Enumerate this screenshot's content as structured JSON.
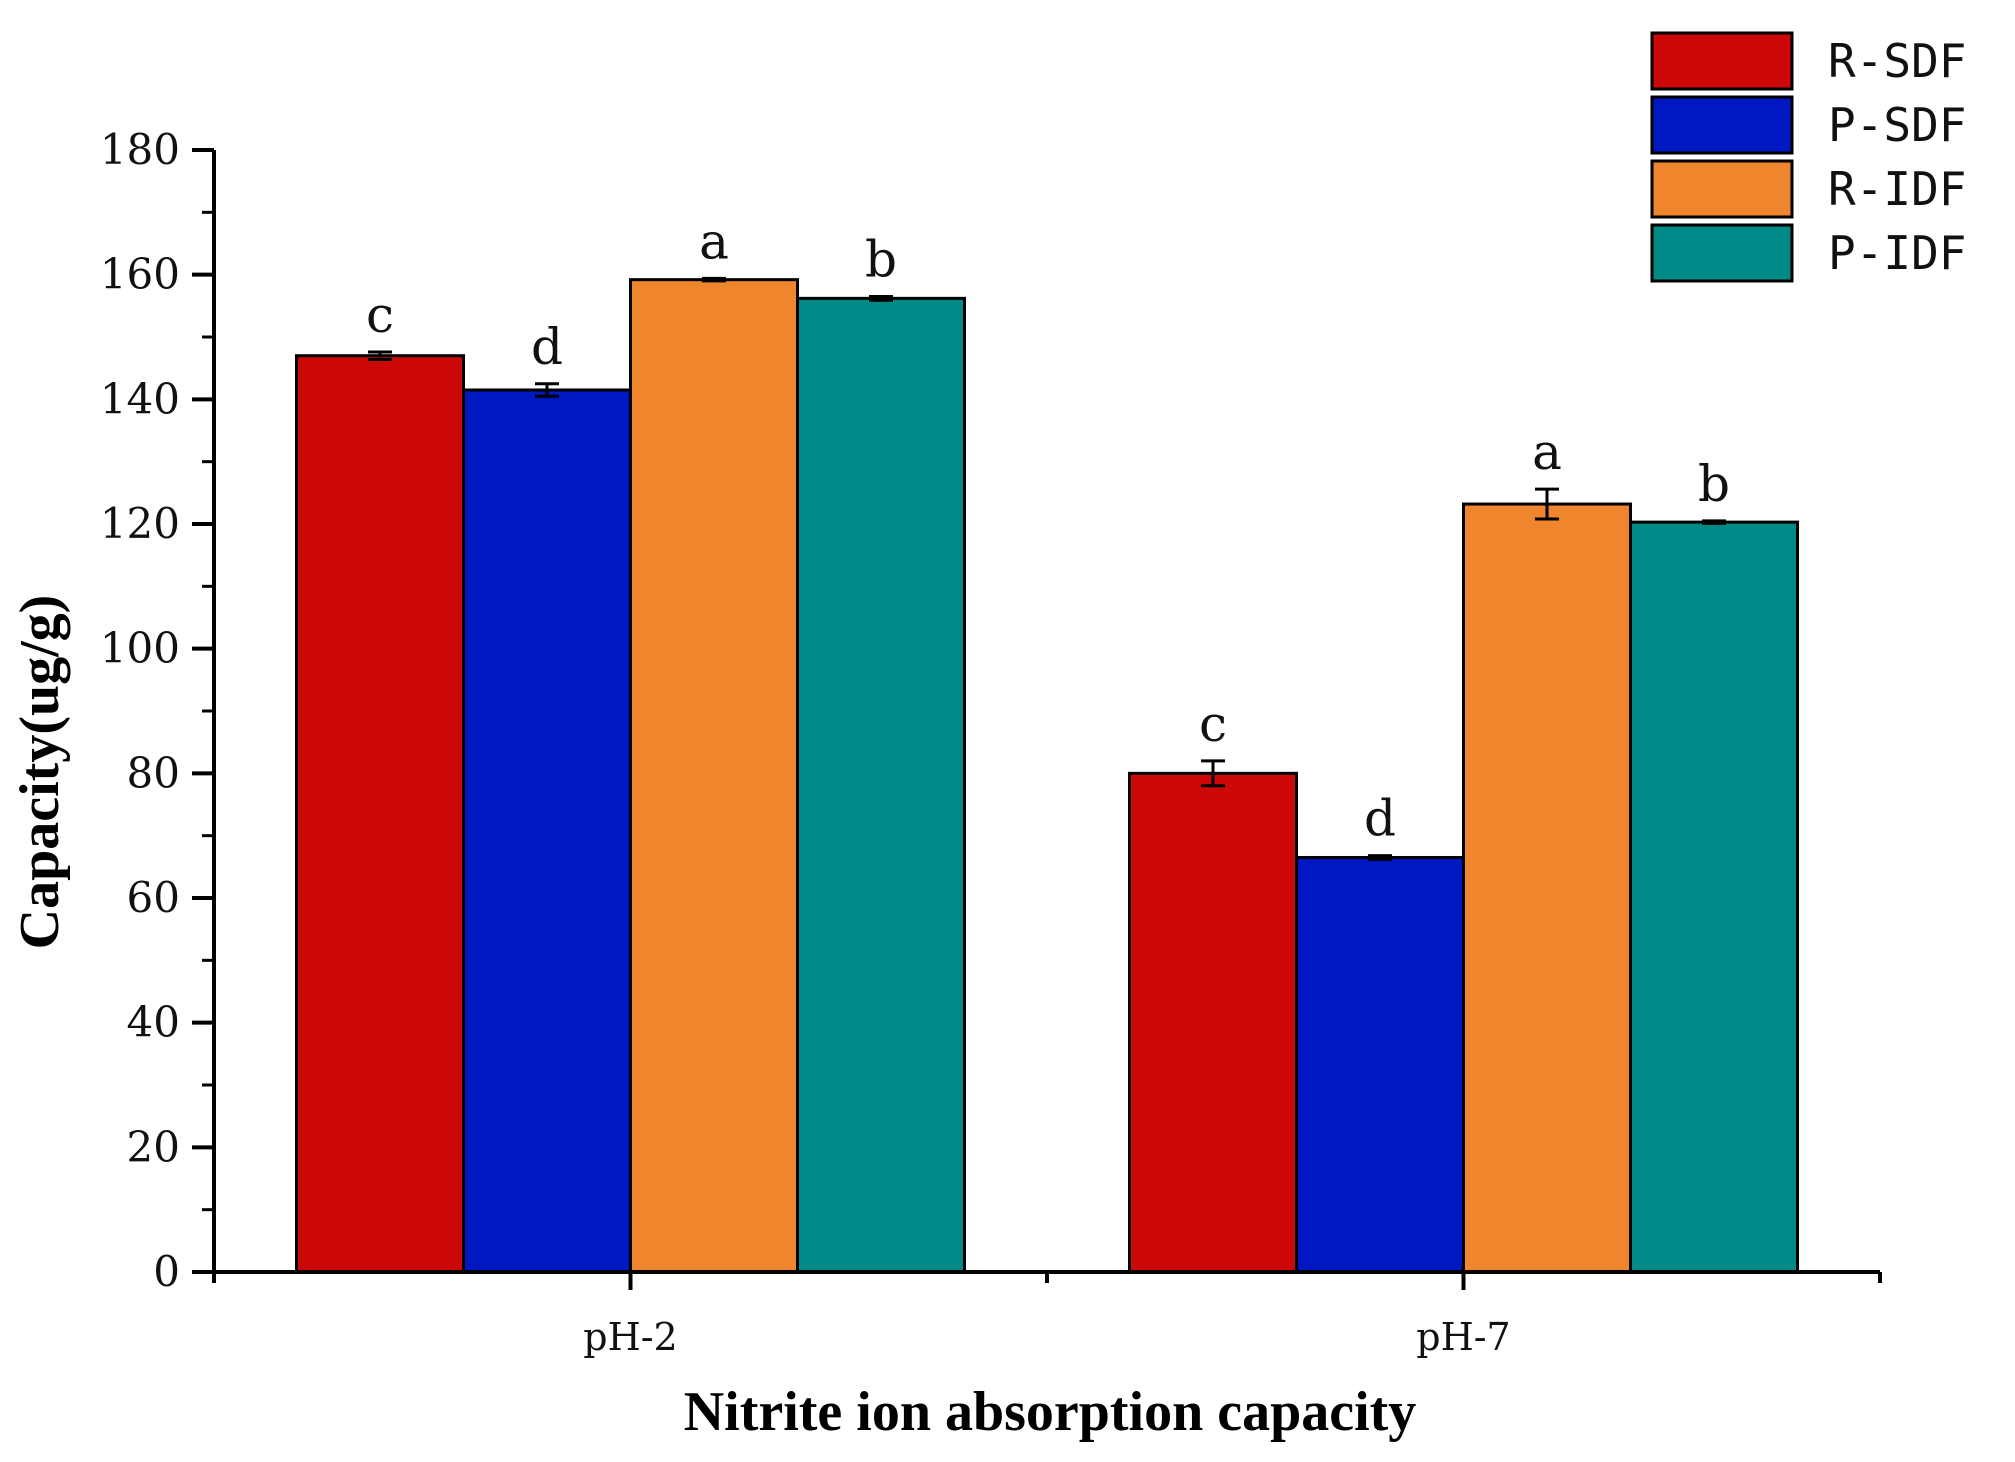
{
  "chart_data": {
    "type": "bar",
    "title": "",
    "xlabel": "Nitrite ion absorption capacity",
    "ylabel": "Capacity(ug/g)",
    "ylim": [
      0,
      180
    ],
    "yticks": [
      0,
      20,
      40,
      60,
      80,
      100,
      120,
      140,
      160,
      180
    ],
    "categories": [
      "pH-2",
      "pH-7"
    ],
    "legend_position": "top-right",
    "series": [
      {
        "name": "R-SDF",
        "color": "#cc0808",
        "values": [
          147.0,
          80.0
        ],
        "errors": [
          0.6,
          2.0
        ],
        "sig": [
          "c",
          "c"
        ]
      },
      {
        "name": "P-SDF",
        "color": "#0018c2",
        "values": [
          141.5,
          66.5
        ],
        "errors": [
          1.0,
          0.3
        ],
        "sig": [
          "d",
          "d"
        ]
      },
      {
        "name": "R-IDF",
        "color": "#ef852c",
        "values": [
          159.2,
          123.2
        ],
        "errors": [
          0.2,
          2.4
        ],
        "sig": [
          "a",
          "a"
        ]
      },
      {
        "name": "P-IDF",
        "color": "#008a87",
        "values": [
          156.2,
          120.3
        ],
        "errors": [
          0.3,
          0.2
        ],
        "sig": [
          "b",
          "b"
        ]
      }
    ]
  }
}
